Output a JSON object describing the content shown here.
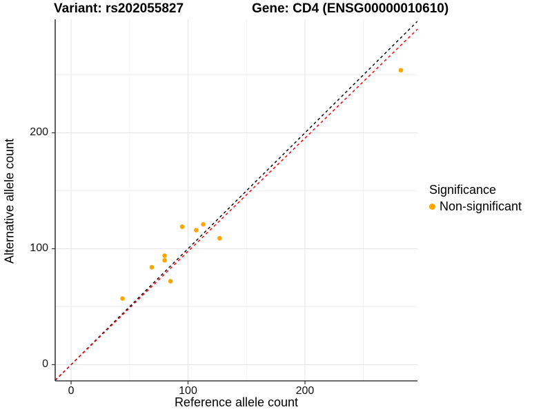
{
  "title": {
    "left": "Variant: rs202055827",
    "right": "Gene: CD4 (ENSG00000010610)"
  },
  "chart_data": {
    "type": "scatter",
    "title": "Variant: rs202055827   Gene: CD4 (ENSG00000010610)",
    "xlabel": "Reference allele count",
    "ylabel": "Alternative allele count",
    "xlim": [
      -13.6,
      296.2
    ],
    "ylim": [
      -14.0,
      297.9
    ],
    "xticks": [
      0,
      100,
      200
    ],
    "yticks": [
      0,
      100,
      200
    ],
    "minor_xticks": [
      50,
      150,
      250
    ],
    "minor_yticks": [
      50,
      150,
      250
    ],
    "grid": true,
    "series": [
      {
        "name": "Non-significant",
        "color": "#FFA500",
        "points": [
          [
            44,
            57
          ],
          [
            69,
            84
          ],
          [
            80,
            90
          ],
          [
            80,
            94
          ],
          [
            85,
            72
          ],
          [
            95,
            119
          ],
          [
            107,
            116
          ],
          [
            113,
            121
          ],
          [
            127,
            109
          ],
          [
            282,
            254
          ]
        ]
      }
    ],
    "reference_lines": [
      {
        "name": "identity-line",
        "slope": 1.0,
        "intercept": 0,
        "color": "#000000",
        "style": "dashed"
      },
      {
        "name": "expected-ratio-line",
        "slope": 0.977,
        "intercept": 0,
        "color": "#FF0000",
        "style": "dashed"
      }
    ],
    "legend": {
      "title": "Significance",
      "position": "right",
      "items": [
        {
          "label": "Non-significant",
          "color": "#FFA500"
        }
      ]
    },
    "colors": {
      "point": "#FFA500",
      "axis_line": "#383838",
      "major_grid": "#E4E4E4",
      "minor_grid": "#F1F1F1"
    }
  }
}
